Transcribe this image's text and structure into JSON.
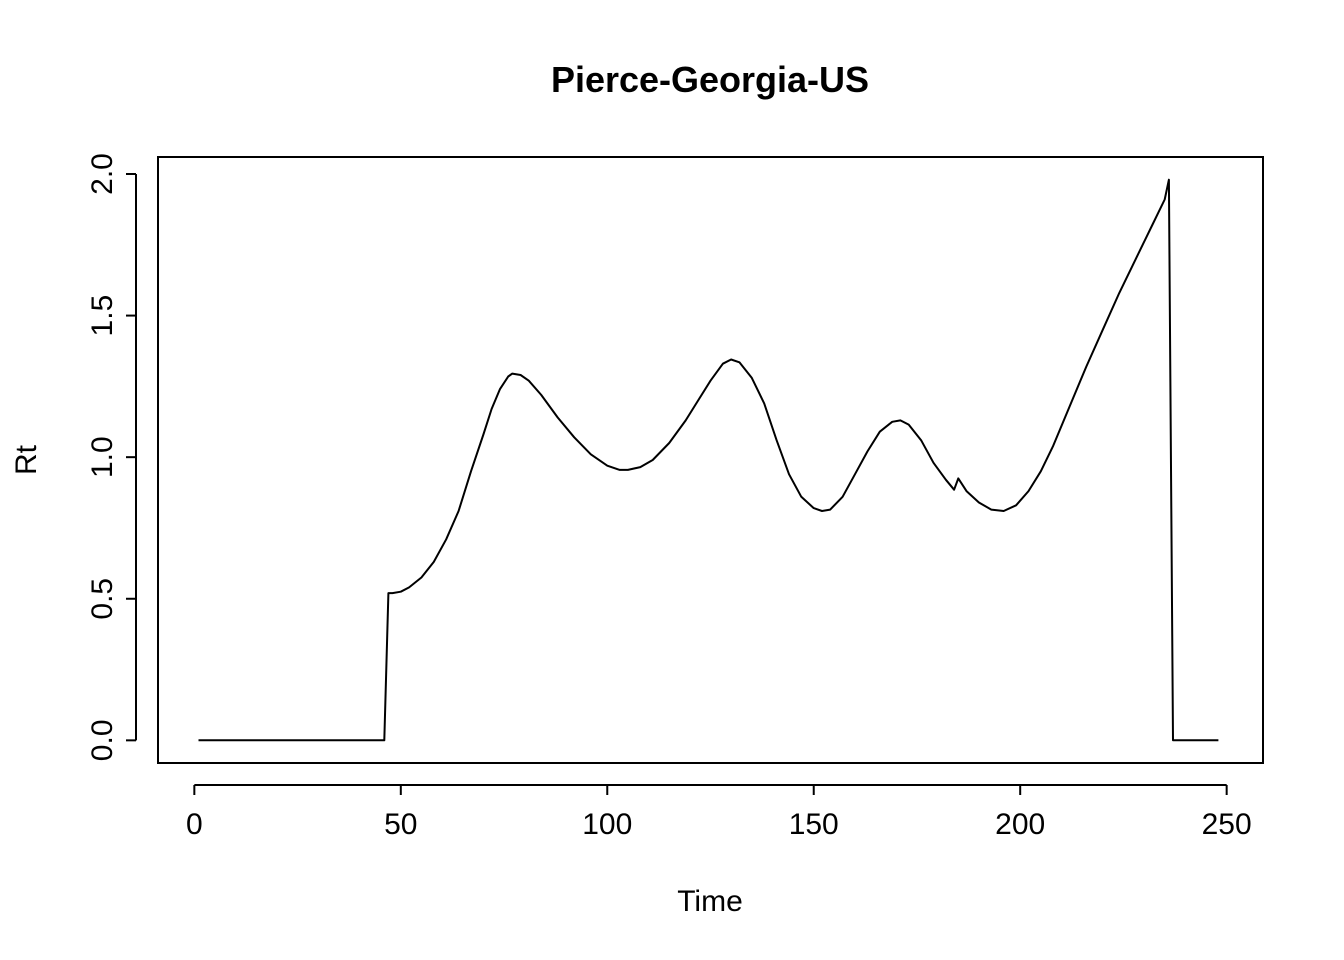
{
  "chart_data": {
    "type": "line",
    "title": "Pierce-Georgia-US",
    "xlabel": "Time",
    "ylabel": "Rt",
    "xlim": [
      -8.8,
      258.8
    ],
    "ylim": [
      -0.08,
      2.06
    ],
    "x_ticks": [
      0,
      50,
      100,
      150,
      200,
      250
    ],
    "y_ticks": [
      0.0,
      0.5,
      1.0,
      1.5,
      2.0
    ],
    "x_tick_labels": [
      "0",
      "50",
      "100",
      "150",
      "200",
      "250"
    ],
    "y_tick_labels": [
      "0.0",
      "0.5",
      "1.0",
      "1.5",
      "2.0"
    ],
    "grid": false,
    "legend": "none",
    "series": [
      {
        "color": "#000000",
        "points": [
          [
            1,
            0
          ],
          [
            46,
            0
          ],
          [
            47,
            0.52
          ],
          [
            48,
            0.52
          ],
          [
            50,
            0.525
          ],
          [
            52,
            0.54
          ],
          [
            55,
            0.575
          ],
          [
            58,
            0.63
          ],
          [
            61,
            0.71
          ],
          [
            64,
            0.81
          ],
          [
            67,
            0.95
          ],
          [
            70,
            1.08
          ],
          [
            72,
            1.17
          ],
          [
            74,
            1.24
          ],
          [
            76,
            1.285
          ],
          [
            77,
            1.295
          ],
          [
            79,
            1.29
          ],
          [
            81,
            1.27
          ],
          [
            84,
            1.22
          ],
          [
            88,
            1.14
          ],
          [
            92,
            1.07
          ],
          [
            96,
            1.01
          ],
          [
            100,
            0.97
          ],
          [
            103,
            0.955
          ],
          [
            105,
            0.955
          ],
          [
            108,
            0.965
          ],
          [
            111,
            0.99
          ],
          [
            115,
            1.05
          ],
          [
            119,
            1.13
          ],
          [
            122,
            1.2
          ],
          [
            125,
            1.27
          ],
          [
            128,
            1.33
          ],
          [
            130,
            1.345
          ],
          [
            132,
            1.335
          ],
          [
            135,
            1.28
          ],
          [
            138,
            1.19
          ],
          [
            141,
            1.06
          ],
          [
            144,
            0.94
          ],
          [
            147,
            0.86
          ],
          [
            150,
            0.82
          ],
          [
            152,
            0.81
          ],
          [
            154,
            0.815
          ],
          [
            157,
            0.86
          ],
          [
            160,
            0.94
          ],
          [
            163,
            1.02
          ],
          [
            166,
            1.09
          ],
          [
            169,
            1.125
          ],
          [
            171,
            1.13
          ],
          [
            173,
            1.115
          ],
          [
            176,
            1.06
          ],
          [
            179,
            0.98
          ],
          [
            182,
            0.92
          ],
          [
            184,
            0.885
          ],
          [
            185,
            0.925
          ],
          [
            187,
            0.88
          ],
          [
            190,
            0.84
          ],
          [
            193,
            0.815
          ],
          [
            196,
            0.81
          ],
          [
            199,
            0.83
          ],
          [
            202,
            0.88
          ],
          [
            205,
            0.95
          ],
          [
            208,
            1.04
          ],
          [
            212,
            1.18
          ],
          [
            216,
            1.32
          ],
          [
            220,
            1.45
          ],
          [
            224,
            1.58
          ],
          [
            228,
            1.7
          ],
          [
            232,
            1.82
          ],
          [
            235,
            1.91
          ],
          [
            236,
            1.98
          ],
          [
            237,
            0
          ],
          [
            248,
            0
          ]
        ]
      }
    ]
  }
}
